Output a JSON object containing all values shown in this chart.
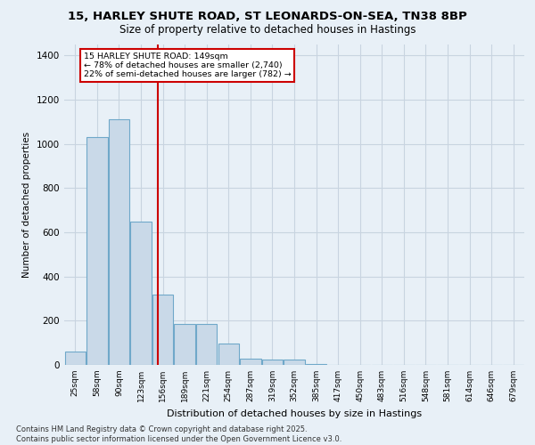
{
  "title_line1": "15, HARLEY SHUTE ROAD, ST LEONARDS-ON-SEA, TN38 8BP",
  "title_line2": "Size of property relative to detached houses in Hastings",
  "xlabel": "Distribution of detached houses by size in Hastings",
  "ylabel": "Number of detached properties",
  "bar_labels": [
    "25sqm",
    "58sqm",
    "90sqm",
    "123sqm",
    "156sqm",
    "189sqm",
    "221sqm",
    "254sqm",
    "287sqm",
    "319sqm",
    "352sqm",
    "385sqm",
    "417sqm",
    "450sqm",
    "483sqm",
    "516sqm",
    "548sqm",
    "581sqm",
    "614sqm",
    "646sqm",
    "679sqm"
  ],
  "bar_values": [
    60,
    1030,
    1110,
    650,
    320,
    185,
    185,
    95,
    28,
    25,
    25,
    5,
    0,
    0,
    0,
    0,
    0,
    0,
    0,
    0,
    0
  ],
  "bar_color": "#c9d9e8",
  "bar_edge_color": "#6fa8c9",
  "grid_color": "#c8d4e0",
  "bg_color": "#e8f0f7",
  "vline_color": "#cc0000",
  "annotation_title": "15 HARLEY SHUTE ROAD: 149sqm",
  "annotation_line1": "← 78% of detached houses are smaller (2,740)",
  "annotation_line2": "22% of semi-detached houses are larger (782) →",
  "annotation_box_color": "#ffffff",
  "annotation_box_edge": "#cc0000",
  "ylim": [
    0,
    1450
  ],
  "yticks": [
    0,
    200,
    400,
    600,
    800,
    1000,
    1200,
    1400
  ],
  "footer_line1": "Contains HM Land Registry data © Crown copyright and database right 2025.",
  "footer_line2": "Contains public sector information licensed under the Open Government Licence v3.0."
}
